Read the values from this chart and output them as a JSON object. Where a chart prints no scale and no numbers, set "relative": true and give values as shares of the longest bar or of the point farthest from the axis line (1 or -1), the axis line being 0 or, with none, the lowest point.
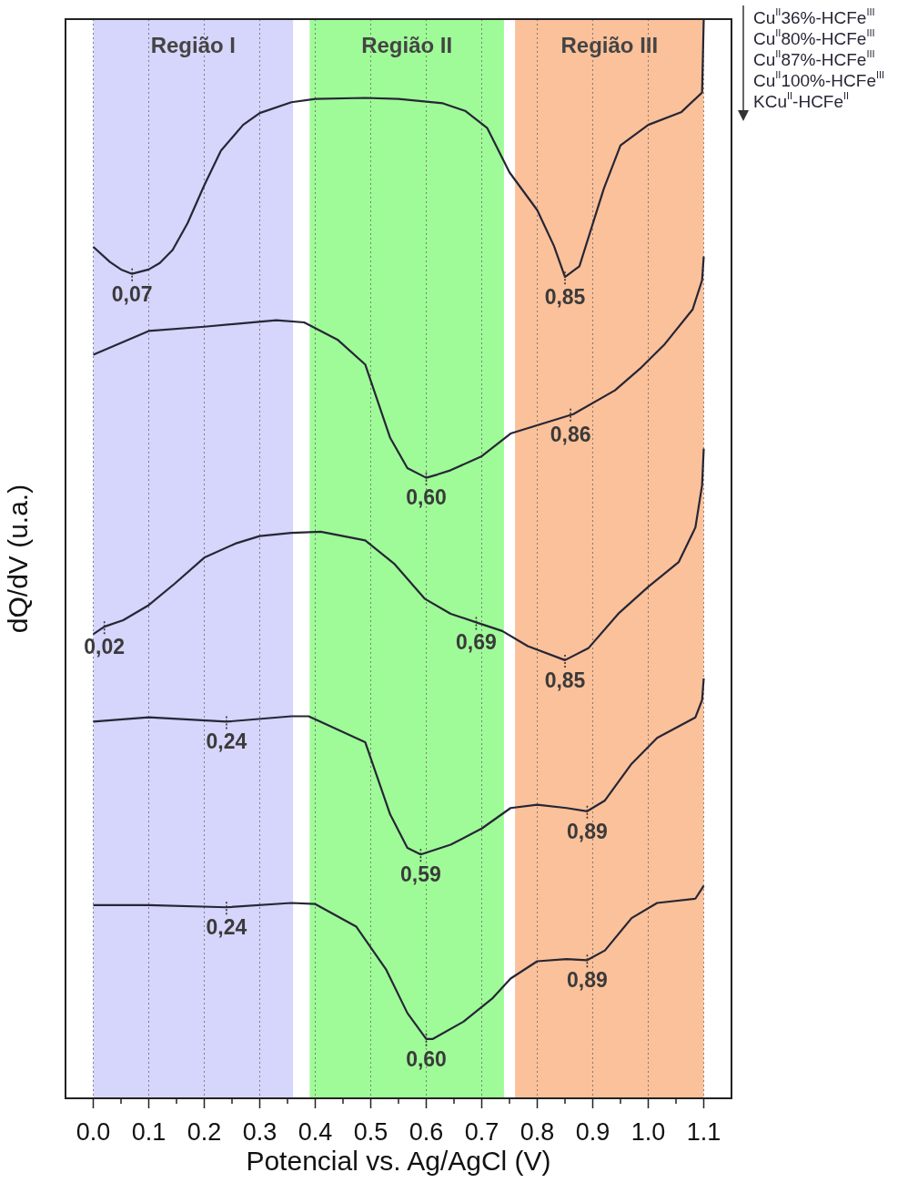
{
  "chart_data": {
    "type": "line",
    "xlabel": "Potencial vs. Ag/AgCl (V)",
    "ylabel": "dQ/dV (u.a.)",
    "relative": true,
    "xlim": [
      -0.05,
      1.15
    ],
    "xticks": [
      {
        "value": 0,
        "label": "0.0"
      },
      {
        "value": 0.05,
        "label": null
      },
      {
        "value": 0.1,
        "label": "0.1"
      },
      {
        "value": 0.15,
        "label": null
      },
      {
        "value": 0.2,
        "label": "0.2"
      },
      {
        "value": 0.25,
        "label": null
      },
      {
        "value": 0.3,
        "label": "0.3"
      },
      {
        "value": 0.35,
        "label": null
      },
      {
        "value": 0.4,
        "label": "0.4"
      },
      {
        "value": 0.45,
        "label": null
      },
      {
        "value": 0.5,
        "label": "0.5"
      },
      {
        "value": 0.55,
        "label": null
      },
      {
        "value": 0.6,
        "label": "0.6"
      },
      {
        "value": 0.65,
        "label": null
      },
      {
        "value": 0.7,
        "label": "0.7"
      },
      {
        "value": 0.75,
        "label": null
      },
      {
        "value": 0.8,
        "label": "0.8"
      },
      {
        "value": 0.85,
        "label": null
      },
      {
        "value": 0.9,
        "label": "0.9"
      },
      {
        "value": 0.95,
        "label": null
      },
      {
        "value": 1,
        "label": "1.0"
      },
      {
        "value": 1.05,
        "label": null
      },
      {
        "value": 1.1,
        "label": "1.1"
      }
    ],
    "tick_labels": "x",
    "grid": "x",
    "legend": "right",
    "marker": "none",
    "line_style": "solid",
    "series": [
      {
        "name": "Cu$^{II}$36%-HCFe$^{III}$",
        "color": "#262636",
        "x": [
          0,
          0.03,
          0.05,
          0.07,
          0.1,
          0.12,
          0.143,
          0.17,
          0.2,
          0.23,
          0.27,
          0.3,
          0.357,
          0.4,
          0.49,
          0.55,
          0.63,
          0.67,
          0.71,
          0.75,
          0.8,
          0.83,
          0.85,
          0.876,
          0.92,
          0.95,
          1,
          1.06,
          1.097,
          1.1
        ],
        "values": [
          0.789,
          0.775,
          0.768,
          0.764,
          0.768,
          0.774,
          0.786,
          0.811,
          0.846,
          0.878,
          0.902,
          0.913,
          0.923,
          0.926,
          0.927,
          0.926,
          0.922,
          0.915,
          0.899,
          0.858,
          0.823,
          0.79,
          0.761,
          0.771,
          0.843,
          0.883,
          0.902,
          0.914,
          0.932,
          1
        ]
      },
      {
        "name": "Cu$^{II}$80%-HCFe$^{III}$",
        "color": "#262636",
        "x": [
          0,
          0.1,
          0.2,
          0.33,
          0.38,
          0.44,
          0.49,
          0.535,
          0.566,
          0.6,
          0.62,
          0.644,
          0.7,
          0.752,
          0.865,
          0.94,
          0.985,
          1.03,
          1.08,
          1.097,
          1.1
        ],
        "values": [
          0.689,
          0.711,
          0.715,
          0.721,
          0.719,
          0.703,
          0.68,
          0.612,
          0.584,
          0.575,
          0.578,
          0.582,
          0.595,
          0.616,
          0.634,
          0.656,
          0.676,
          0.699,
          0.731,
          0.758,
          0.78
        ]
      },
      {
        "name": "Cu$^{II}$87%-HCFe$^{III}$",
        "color": "#262636",
        "x": [
          0,
          0.02,
          0.054,
          0.1,
          0.147,
          0.2,
          0.256,
          0.3,
          0.357,
          0.41,
          0.49,
          0.543,
          0.597,
          0.644,
          0.69,
          0.737,
          0.783,
          0.85,
          0.892,
          0.946,
          1,
          1.055,
          1.085,
          1.097,
          1.1
        ],
        "values": [
          0.43,
          0.437,
          0.443,
          0.457,
          0.477,
          0.501,
          0.514,
          0.521,
          0.524,
          0.525,
          0.517,
          0.495,
          0.463,
          0.449,
          0.441,
          0.433,
          0.419,
          0.406,
          0.417,
          0.449,
          0.474,
          0.497,
          0.529,
          0.568,
          0.602
        ]
      },
      {
        "name": "Cu$^{II}$100%-HCFe$^{III}$",
        "color": "#262636",
        "x": [
          0,
          0.1,
          0.24,
          0.357,
          0.388,
          0.49,
          0.535,
          0.566,
          0.59,
          0.644,
          0.7,
          0.752,
          0.8,
          0.853,
          0.89,
          0.922,
          0.97,
          1.016,
          1.085,
          1.097,
          1.1
        ],
        "values": [
          0.349,
          0.353,
          0.349,
          0.354,
          0.354,
          0.33,
          0.263,
          0.232,
          0.226,
          0.235,
          0.25,
          0.269,
          0.272,
          0.269,
          0.266,
          0.276,
          0.31,
          0.334,
          0.353,
          0.369,
          0.389
        ]
      },
      {
        "name": "KCu$^{II}$-HCFe$^{II}$",
        "color": "#262636",
        "x": [
          0,
          0.1,
          0.24,
          0.357,
          0.4,
          0.474,
          0.528,
          0.566,
          0.6,
          0.612,
          0.667,
          0.72,
          0.752,
          0.8,
          0.853,
          0.89,
          0.922,
          0.97,
          1.016,
          1.085,
          1.1
        ],
        "values": [
          0.179,
          0.179,
          0.177,
          0.181,
          0.18,
          0.159,
          0.119,
          0.079,
          0.055,
          0.055,
          0.071,
          0.093,
          0.111,
          0.127,
          0.129,
          0.128,
          0.137,
          0.167,
          0.181,
          0.185,
          0.197
        ]
      }
    ],
    "bands": [
      {
        "axis": "x",
        "from": 0,
        "to": 0.36,
        "label": "Região I",
        "color": "#d6d5fb"
      },
      {
        "axis": "x",
        "from": 0.39,
        "to": 0.74,
        "label": "Região II",
        "color": "#9ffb98"
      },
      {
        "axis": "x",
        "from": 0.76,
        "to": 1.1,
        "label": "Região III",
        "color": "#fbc19a"
      }
    ],
    "annotations": [
      {
        "text": "0,07",
        "x": 0.07,
        "y": 0.764
      },
      {
        "text": "0,85",
        "x": 0.85,
        "y": 0.761
      },
      {
        "text": "0,60",
        "x": 0.6,
        "y": 0.575
      },
      {
        "text": "0,86",
        "x": 0.86,
        "y": 0.634
      },
      {
        "text": "0,02",
        "x": 0.02,
        "y": 0.437
      },
      {
        "text": "0,69",
        "x": 0.69,
        "y": 0.441
      },
      {
        "text": "0,85",
        "x": 0.85,
        "y": 0.406
      },
      {
        "text": "0,24",
        "x": 0.24,
        "y": 0.349
      },
      {
        "text": "0,59",
        "x": 0.59,
        "y": 0.226
      },
      {
        "text": "0,89",
        "x": 0.89,
        "y": 0.266
      },
      {
        "text": "0,24",
        "x": 0.24,
        "y": 0.177
      },
      {
        "text": "0,60",
        "x": 0.6,
        "y": 0.055
      },
      {
        "text": "0,89",
        "x": 0.89,
        "y": 0.128
      }
    ]
  }
}
